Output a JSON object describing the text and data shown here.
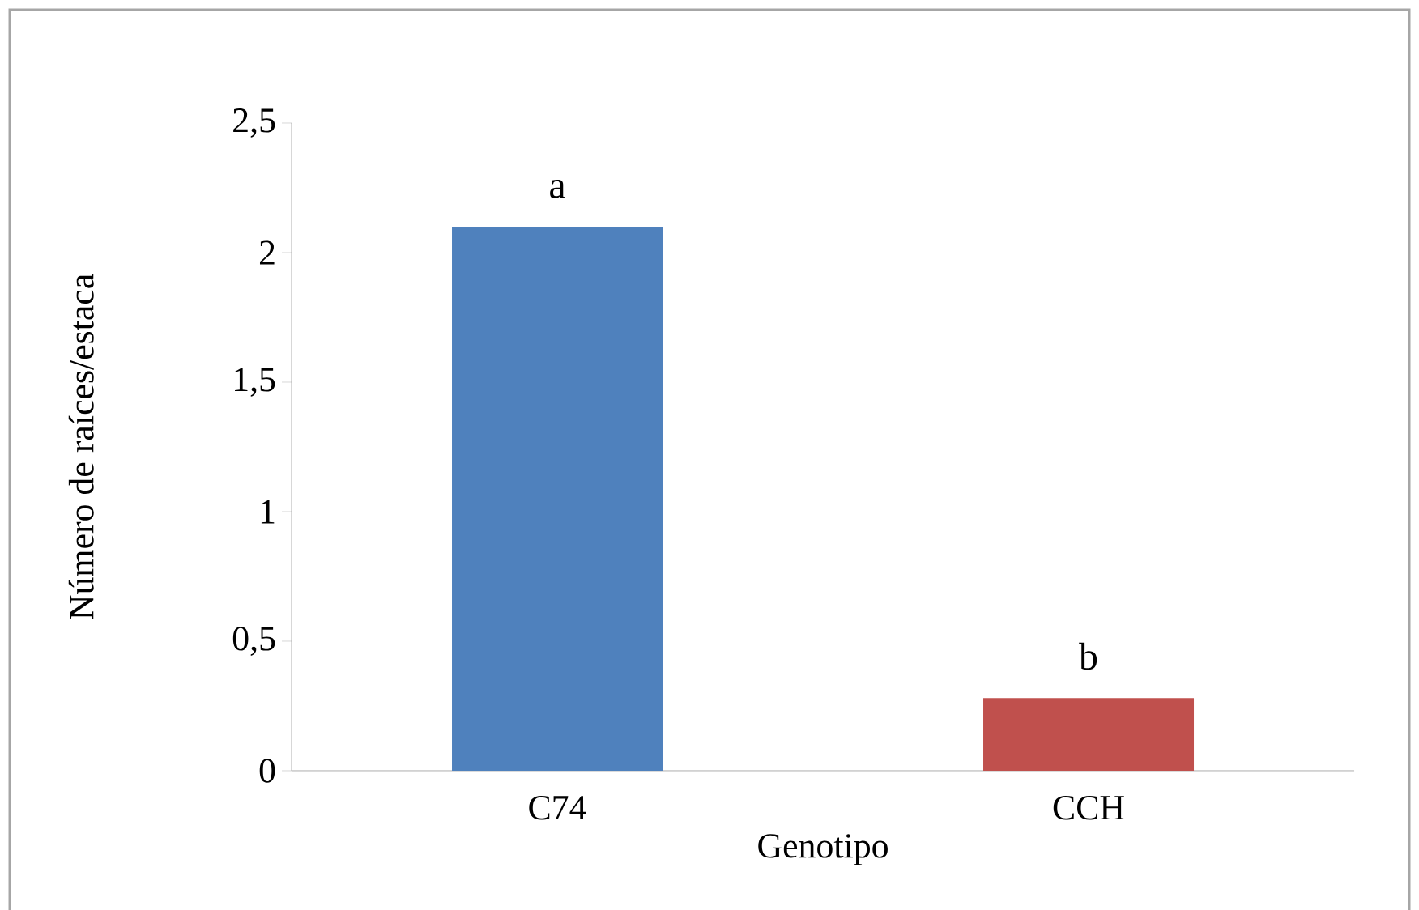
{
  "chart_data": {
    "type": "bar",
    "xlabel": "Genotipo",
    "ylabel": "Número de raíces/estaca",
    "categories": [
      "C74",
      "CCH"
    ],
    "values": [
      2.1,
      0.28
    ],
    "colors": [
      "#4f81bd",
      "#c0504d"
    ],
    "ylim": [
      0,
      2.5
    ],
    "yticks": [
      0,
      {
        "value": 0.5,
        "label": "0,5"
      },
      1,
      {
        "value": 1.5,
        "label": "1,5"
      },
      2,
      {
        "value": 2.5,
        "label": "2,5"
      }
    ],
    "annotations": [
      {
        "text": "a",
        "x": "C74",
        "y": 2.1
      },
      {
        "text": "b",
        "x": "CCH",
        "y": 0.28
      }
    ],
    "grid": false
  }
}
